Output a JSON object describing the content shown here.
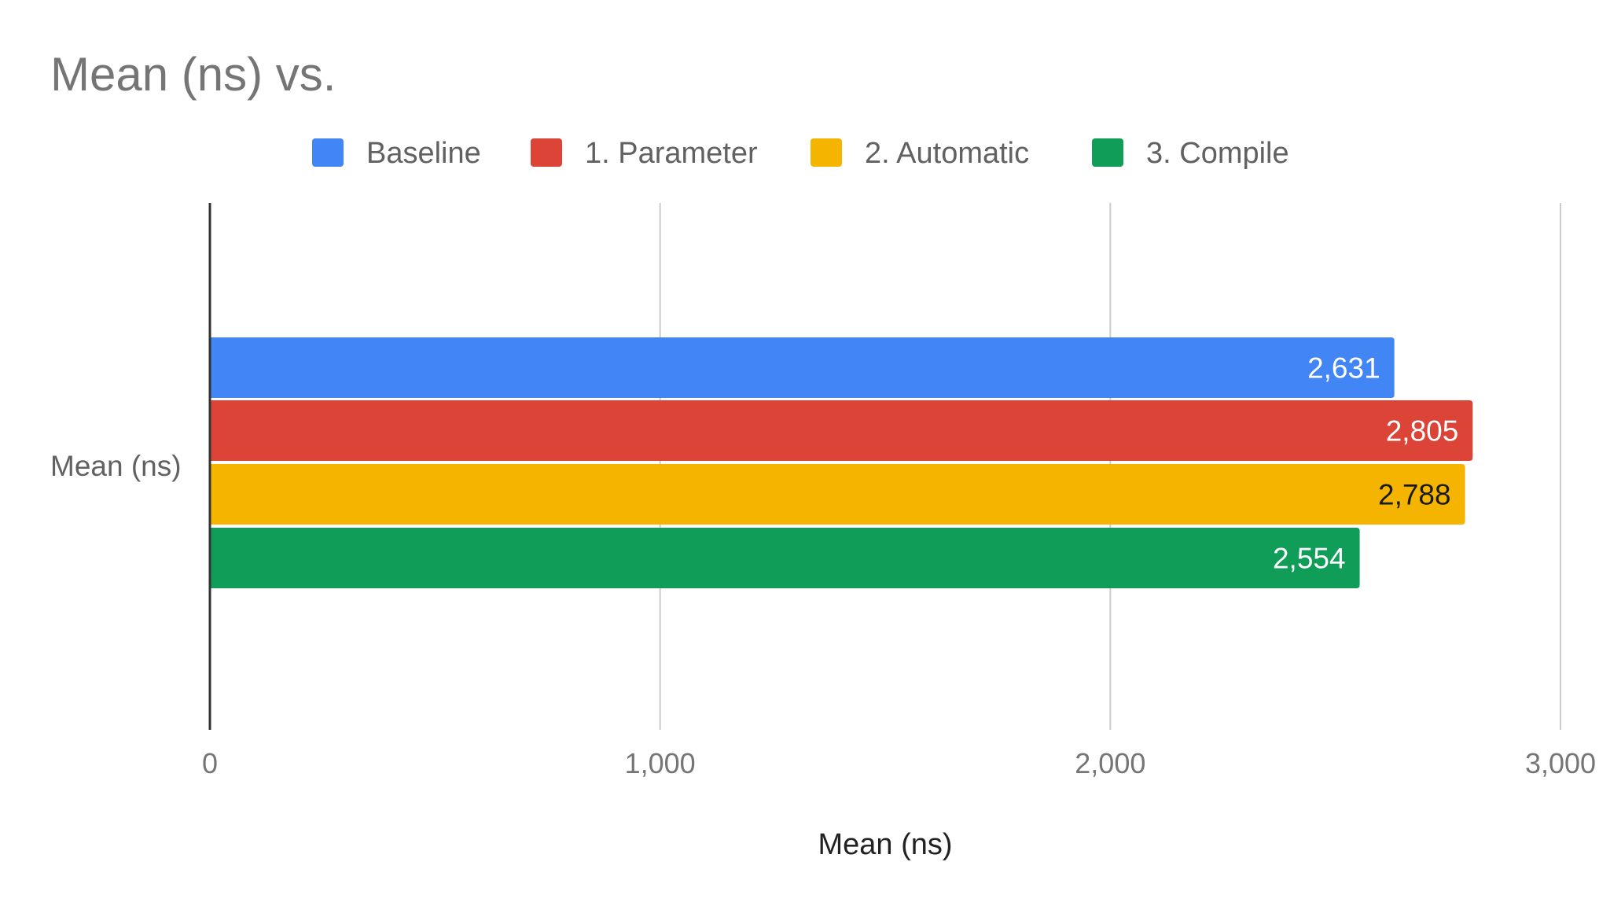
{
  "chart_data": {
    "type": "bar",
    "orientation": "horizontal",
    "title": "Mean (ns) vs.",
    "categories": [
      "Mean (ns)"
    ],
    "series": [
      {
        "name": "Baseline",
        "values": [
          2631
        ],
        "color": "#4285f4",
        "label": "2,631",
        "label_color": "#ffffff"
      },
      {
        "name": "1. Parameter",
        "values": [
          2805
        ],
        "color": "#db4437",
        "label": "2,805",
        "label_color": "#ffffff"
      },
      {
        "name": "2. Automatic",
        "values": [
          2788
        ],
        "color": "#f4b400",
        "label": "2,788",
        "label_color": "#1a1a1a"
      },
      {
        "name": "3. Compile",
        "values": [
          2554
        ],
        "color": "#0f9d58",
        "label": "2,554",
        "label_color": "#ffffff"
      }
    ],
    "xlabel": "Mean (ns)",
    "ylabel": "",
    "xlim": [
      0,
      3000
    ],
    "xticks": [
      {
        "value": 0,
        "label": "0"
      },
      {
        "value": 1000,
        "label": "1,000"
      },
      {
        "value": 2000,
        "label": "2,000"
      },
      {
        "value": 3000,
        "label": "3,000"
      }
    ],
    "grid": true,
    "legend_position": "top"
  }
}
